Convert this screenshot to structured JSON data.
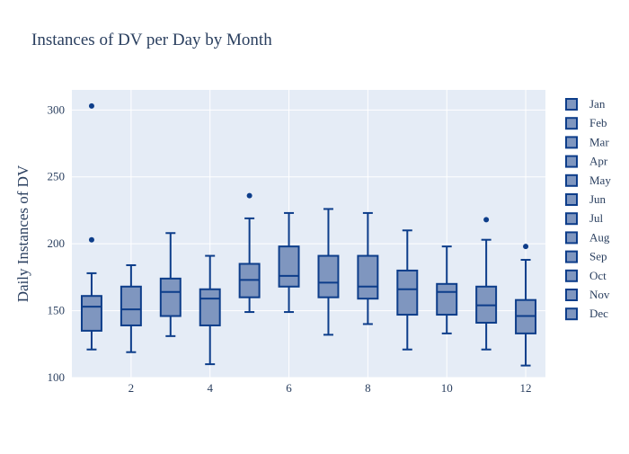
{
  "chart_data": {
    "type": "box",
    "title": "Instances of DV per Day by Month",
    "xlabel": "",
    "ylabel": "Daily Instances of DV",
    "xlim": [
      0.5,
      12.5
    ],
    "ylim": [
      100,
      315
    ],
    "x_ticks": [
      2,
      4,
      6,
      8,
      10,
      12
    ],
    "y_ticks": [
      100,
      150,
      200,
      250,
      300
    ],
    "grid": true,
    "legend_position": "right",
    "colors": {
      "fill": "#7f96bf",
      "line": "#0d3d8a",
      "plot_background": "#e5ecf6",
      "text": "#2a3f5f"
    },
    "series": [
      {
        "name": "Jan",
        "x": 1,
        "min": 121,
        "q1": 135,
        "median": 153,
        "q3": 161,
        "max": 178,
        "outliers": [
          203,
          303
        ]
      },
      {
        "name": "Feb",
        "x": 2,
        "min": 119,
        "q1": 139,
        "median": 151,
        "q3": 168,
        "max": 184,
        "outliers": []
      },
      {
        "name": "Mar",
        "x": 3,
        "min": 131,
        "q1": 146,
        "median": 164,
        "q3": 174,
        "max": 208,
        "outliers": []
      },
      {
        "name": "Apr",
        "x": 4,
        "min": 110,
        "q1": 139,
        "median": 159,
        "q3": 166,
        "max": 191,
        "outliers": []
      },
      {
        "name": "May",
        "x": 5,
        "min": 149,
        "q1": 160,
        "median": 173,
        "q3": 185,
        "max": 219,
        "outliers": [
          236
        ]
      },
      {
        "name": "Jun",
        "x": 6,
        "min": 149,
        "q1": 168,
        "median": 176,
        "q3": 198,
        "max": 223,
        "outliers": []
      },
      {
        "name": "Jul",
        "x": 7,
        "min": 132,
        "q1": 160,
        "median": 171,
        "q3": 191,
        "max": 226,
        "outliers": []
      },
      {
        "name": "Aug",
        "x": 8,
        "min": 140,
        "q1": 159,
        "median": 168,
        "q3": 191,
        "max": 223,
        "outliers": []
      },
      {
        "name": "Sep",
        "x": 9,
        "min": 121,
        "q1": 147,
        "median": 166,
        "q3": 180,
        "max": 210,
        "outliers": []
      },
      {
        "name": "Oct",
        "x": 10,
        "min": 133,
        "q1": 147,
        "median": 164,
        "q3": 170,
        "max": 198,
        "outliers": []
      },
      {
        "name": "Nov",
        "x": 11,
        "min": 121,
        "q1": 141,
        "median": 154,
        "q3": 168,
        "max": 203,
        "outliers": [
          218
        ]
      },
      {
        "name": "Dec",
        "x": 12,
        "min": 109,
        "q1": 133,
        "median": 146,
        "q3": 158,
        "max": 188,
        "outliers": [
          198
        ]
      }
    ]
  }
}
